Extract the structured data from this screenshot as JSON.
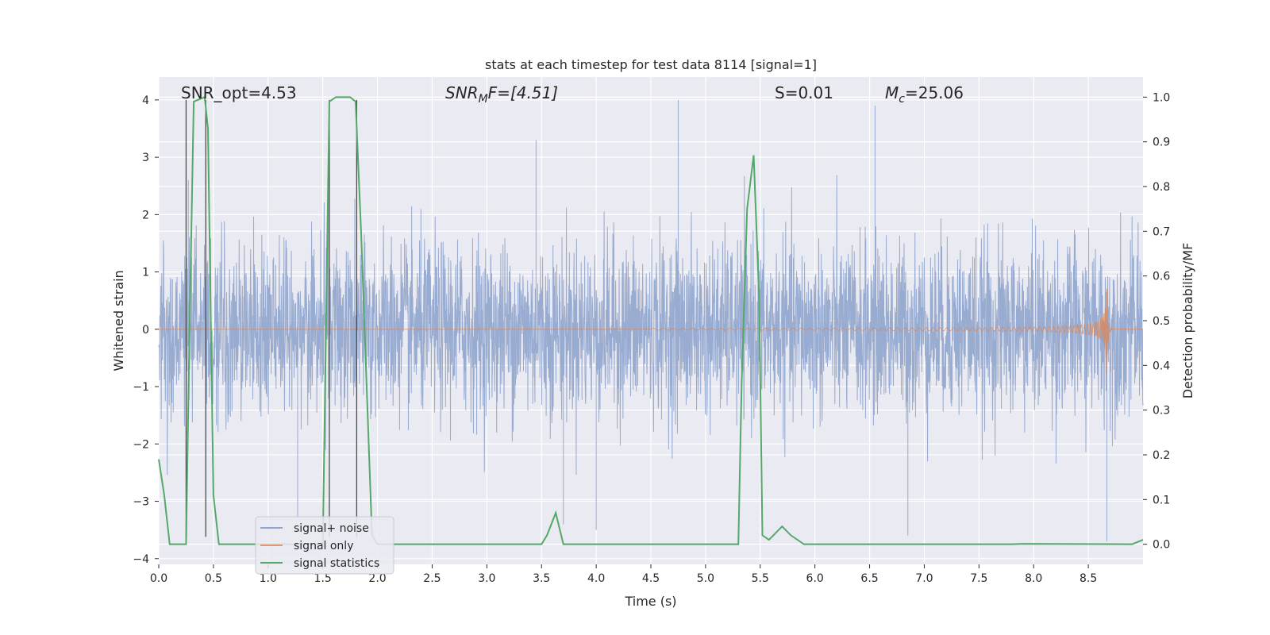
{
  "chart_data": {
    "type": "line",
    "title": "stats at each timestep for test data 8114 [signal=1]",
    "xlabel": "Time (s)",
    "ylabel_left": "Whitened strain",
    "ylabel_right": "Detection probability/MF",
    "xlim": [
      0.0,
      9.0
    ],
    "ylim_left": [
      -4.1,
      4.4
    ],
    "ylim_right": [
      -0.045,
      1.045
    ],
    "x_ticks": [
      "0.0",
      "0.5",
      "1.0",
      "1.5",
      "2.0",
      "2.5",
      "3.0",
      "3.5",
      "4.0",
      "4.5",
      "5.0",
      "5.5",
      "6.0",
      "6.5",
      "7.0",
      "7.5",
      "8.0",
      "8.5"
    ],
    "y_ticks_left": [
      "−4",
      "−3",
      "−2",
      "−1",
      "0",
      "1",
      "2",
      "3",
      "4"
    ],
    "y_ticks_right": [
      "0.0",
      "0.1",
      "0.2",
      "0.3",
      "0.4",
      "0.5",
      "0.6",
      "0.7",
      "0.8",
      "0.9",
      "1.0"
    ],
    "grid": true,
    "legend_position": "lower-left",
    "colors": {
      "noise": "#8fa4cc",
      "signal": "#dd8452",
      "stats": "#55a868",
      "markers": "#4c4c4c",
      "background": "#eaeaf2",
      "grid": "#ffffff"
    },
    "annotations": {
      "snr_opt": "SNR_opt=4.53",
      "snr_mf_main": "SNR",
      "snr_mf_sub": "M",
      "snr_mf_rest": "F=[4.51]",
      "s_stat": "S=0.01",
      "mc_main": "M",
      "mc_sub": "c",
      "mc_rest": "=25.06"
    },
    "series": [
      {
        "name": "signal+ noise",
        "axis": "left",
        "kind": "noise",
        "std": 0.75,
        "t_start": 0.0,
        "t_end": 9.0,
        "peaks": [
          [
            0.27,
            2.6
          ],
          [
            1.27,
            -3.3
          ],
          [
            1.55,
            2.9
          ],
          [
            3.45,
            3.3
          ],
          [
            3.7,
            -3.4
          ],
          [
            4.0,
            -3.5
          ],
          [
            4.75,
            4.0
          ],
          [
            6.55,
            3.9
          ],
          [
            6.85,
            -3.6
          ],
          [
            8.67,
            -3.7
          ]
        ]
      },
      {
        "name": "signal only",
        "axis": "left",
        "kind": "chirp",
        "t_start": 4.5,
        "t_merge": 8.67,
        "peak_amplitude": 0.9
      },
      {
        "name": "signal statistics",
        "axis": "right",
        "kind": "line",
        "x": [
          0.0,
          0.05,
          0.1,
          0.25,
          0.28,
          0.32,
          0.42,
          0.45,
          0.5,
          0.55,
          0.6,
          1.5,
          1.56,
          1.62,
          1.75,
          1.8,
          1.85,
          1.95,
          2.0,
          3.5,
          3.55,
          3.63,
          3.7,
          5.3,
          5.33,
          5.38,
          5.44,
          5.49,
          5.52,
          5.58,
          5.7,
          5.78,
          5.9,
          6.0,
          7.8,
          7.9,
          8.9,
          9.0
        ],
        "y": [
          0.19,
          0.11,
          0.0,
          0.0,
          0.46,
          0.99,
          1.0,
          0.93,
          0.11,
          0.0,
          0.0,
          0.0,
          0.99,
          1.0,
          1.0,
          0.99,
          0.7,
          0.02,
          0.0,
          0.0,
          0.02,
          0.07,
          0.0,
          0.0,
          0.36,
          0.75,
          0.87,
          0.55,
          0.02,
          0.01,
          0.04,
          0.02,
          0.0,
          0.0,
          0.0,
          0.001,
          0.0,
          0.01
        ]
      }
    ],
    "vertical_markers": [
      0.25,
      0.43,
      1.56,
      1.81
    ],
    "vertical_marker_range": [
      -3.62,
      4.0
    ]
  }
}
